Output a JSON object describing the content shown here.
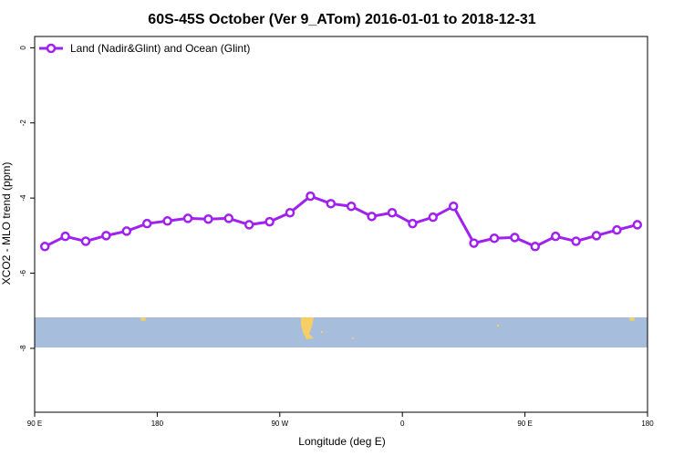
{
  "chart_data": {
    "type": "line",
    "title": "60S-45S October (Ver 9_ATom)   2016-01-01 to 2018-12-31",
    "x_label": "Longitude (deg E)",
    "y_label": "XCO2 - MLO trend (ppm)",
    "x": [
      97.5,
      112.5,
      127.5,
      142.5,
      157.5,
      172.5,
      187.5,
      202.5,
      217.5,
      232.5,
      247.5,
      262.5,
      277.5,
      292.5,
      307.5,
      322.5,
      337.5,
      352.5,
      367.5,
      382.5,
      397.5,
      412.5,
      427.5,
      442.5,
      457.5,
      472.5,
      487.5,
      502.5,
      517.5,
      532.5
    ],
    "series": [
      {
        "name": "Land (Nadir&Glint) and Ocean (Glint)",
        "color": "#a020f0",
        "values": [
          -5.29,
          -5.02,
          -5.15,
          -5.0,
          -4.88,
          -4.68,
          -4.61,
          -4.54,
          -4.56,
          -4.54,
          -4.71,
          -4.63,
          -4.39,
          -3.95,
          -4.15,
          -4.22,
          -4.49,
          -4.39,
          -4.68,
          -4.51,
          -4.22,
          -5.2,
          -5.07,
          -5.05,
          -5.29,
          -5.02,
          -5.15,
          -5.0,
          -4.85,
          -4.71
        ]
      }
    ],
    "xlim": [
      90,
      540
    ],
    "xticks": [
      {
        "value": 90,
        "label": "90 E"
      },
      {
        "value": 180,
        "label": "180"
      },
      {
        "value": 270,
        "label": "90 W"
      },
      {
        "value": 360,
        "label": "0"
      },
      {
        "value": 450,
        "label": "90 E"
      },
      {
        "value": 540,
        "label": "180"
      }
    ],
    "ylim": [
      -9.7,
      0.3
    ],
    "yticks": [
      0,
      -2,
      -4,
      -6,
      -8
    ],
    "legend": "top-left"
  }
}
